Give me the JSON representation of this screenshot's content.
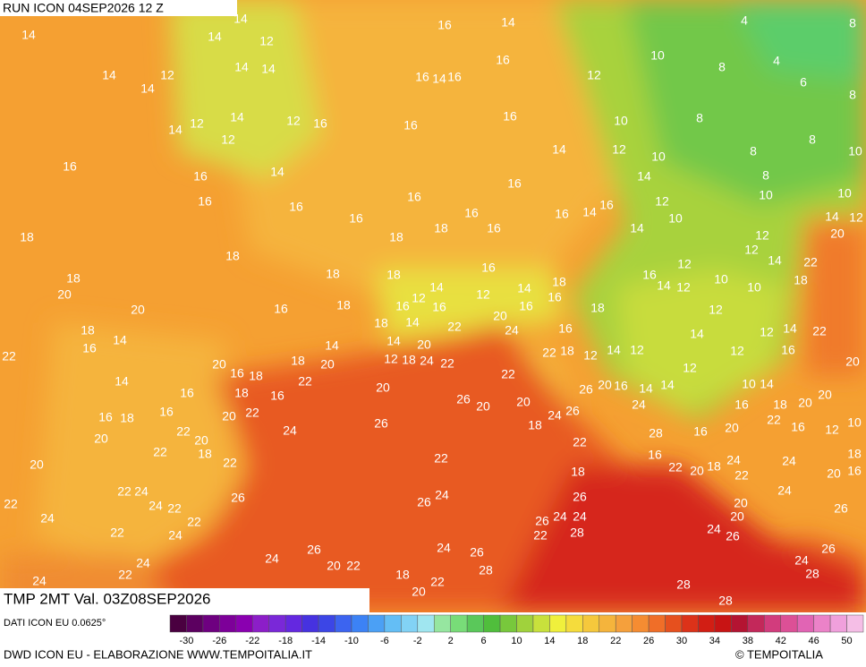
{
  "header": {
    "run": "RUN ICON 04SEP2026 12 Z",
    "field": "TMP 2MT Val. 03Z08SEP2026"
  },
  "footer": {
    "source": "DATI ICON EU 0.0625°",
    "credit": "DWD ICON EU - ELABORAZIONE WWW.TEMPOITALIA.IT",
    "copyright": "© TEMPOITALIA"
  },
  "colorbar": {
    "range": [
      -32,
      52
    ],
    "ticks": [
      -30,
      -26,
      -22,
      -18,
      -14,
      -10,
      -6,
      -2,
      2,
      6,
      10,
      14,
      18,
      22,
      26,
      30,
      34,
      38,
      42,
      46,
      50
    ],
    "colors": [
      "#4a0040",
      "#5c0060",
      "#6e0080",
      "#7d0099",
      "#8a00b0",
      "#8c1ec8",
      "#7a28d8",
      "#6428e0",
      "#4632e0",
      "#3c46e6",
      "#3c64f0",
      "#3c82f5",
      "#4ba0f5",
      "#64bef5",
      "#82d2f5",
      "#a0e6f0",
      "#96e6a0",
      "#78dc78",
      "#5ac85a",
      "#50be3c",
      "#78c83c",
      "#a0d23c",
      "#c8e13c",
      "#f0f03c",
      "#f5dc3c",
      "#f5c83c",
      "#f5b43c",
      "#f5a03c",
      "#f58c32",
      "#f06e28",
      "#e6501e",
      "#dc3219",
      "#d21e14",
      "#c81414",
      "#b41432",
      "#c3285a",
      "#d23c7d",
      "#dc5096",
      "#e164b4",
      "#eb82c8",
      "#f0a0dc",
      "#f5bee6"
    ]
  },
  "map": {
    "labels": [
      14,
      14,
      14,
      12,
      16,
      14,
      4,
      8,
      10,
      16,
      14,
      12,
      14,
      14,
      14,
      16,
      14,
      16,
      12,
      8,
      4,
      6,
      8,
      12,
      14,
      14,
      12,
      16,
      12,
      16,
      16,
      10,
      8,
      14,
      12,
      10,
      8,
      8,
      10,
      16,
      16,
      14,
      14,
      8,
      16,
      16,
      16,
      16,
      12,
      10,
      10,
      16,
      16,
      16,
      14,
      16,
      10,
      14,
      12,
      18,
      18,
      18,
      16,
      14,
      12,
      20,
      12,
      14,
      22,
      18,
      18,
      20,
      18,
      18,
      16,
      14,
      12,
      16,
      12,
      14,
      18,
      16,
      16,
      12,
      14,
      12,
      10,
      10,
      18,
      20,
      16,
      18,
      18,
      14,
      16,
      22,
      20,
      16,
      18,
      12,
      18,
      14,
      16,
      14,
      14,
      20,
      24,
      16,
      14,
      12,
      14,
      22,
      22,
      20,
      16,
      18,
      18,
      20,
      12,
      18,
      24,
      22,
      22,
      18,
      12,
      14,
      12,
      12,
      12,
      16,
      20,
      14,
      16,
      18,
      22,
      16,
      20,
      22,
      26,
      20,
      16,
      14,
      14,
      10,
      14,
      20,
      16,
      18,
      16,
      20,
      22,
      26,
      20,
      20,
      24,
      26,
      24,
      16,
      18,
      20,
      24,
      26,
      18,
      28,
      16,
      20,
      22,
      16,
      12,
      10,
      20,
      22,
      20,
      22,
      18,
      22,
      16,
      24,
      24,
      18,
      20,
      22,
      22,
      22,
      20,
      18,
      22,
      20,
      16,
      18,
      22,
      24,
      26,
      24,
      26,
      26,
      20,
      24,
      22,
      24,
      22,
      22,
      24,
      26,
      24,
      24,
      20,
      26,
      22,
      24,
      22,
      28,
      24,
      26,
      26,
      24,
      26,
      26,
      24,
      24,
      24,
      22,
      20,
      22,
      28,
      24,
      28,
      18,
      22,
      20,
      28,
      28
    ]
  }
}
